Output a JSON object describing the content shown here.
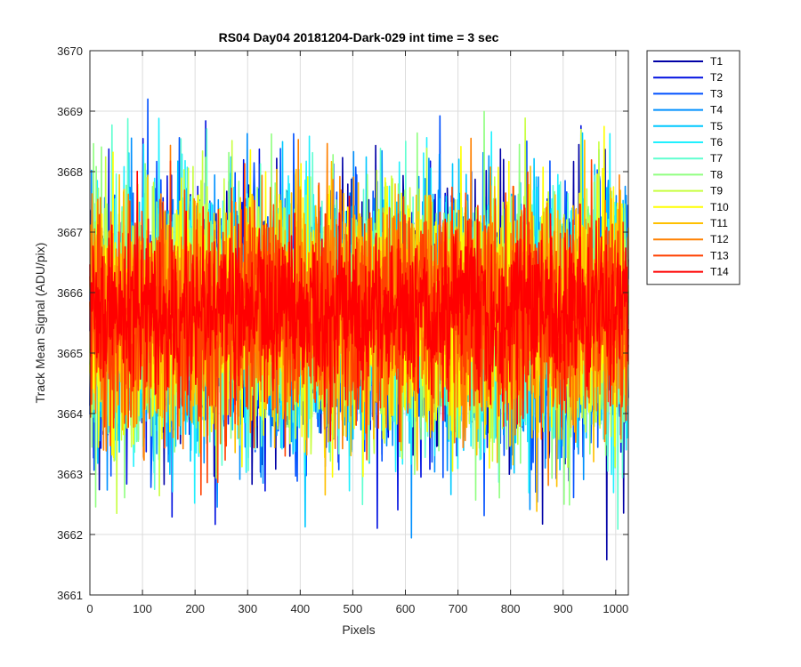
{
  "chart_data": {
    "type": "line",
    "title": "RS04 Day04 20181204-Dark-029 int time = 3 sec",
    "xlabel": "Pixels",
    "ylabel": "Track Mean Signal (ADU/pix)",
    "xlim": [
      0,
      1024
    ],
    "ylim": [
      3661,
      3670
    ],
    "xticks": [
      0,
      100,
      200,
      300,
      400,
      500,
      600,
      700,
      800,
      900,
      1000
    ],
    "yticks": [
      3661,
      3662,
      3663,
      3664,
      3665,
      3666,
      3667,
      3668,
      3669,
      3670
    ],
    "grid": true,
    "legend_position": "outside-top-right",
    "points_per_series": 1024,
    "series": [
      {
        "name": "T1",
        "color": "#0000a6",
        "mean": 3665.55,
        "spread": 1.05
      },
      {
        "name": "T2",
        "color": "#0010e0",
        "mean": 3665.55,
        "spread": 1.05
      },
      {
        "name": "T3",
        "color": "#0050ff",
        "mean": 3665.55,
        "spread": 1.05
      },
      {
        "name": "T4",
        "color": "#0090ff",
        "mean": 3665.55,
        "spread": 1.05
      },
      {
        "name": "T5",
        "color": "#00c8ff",
        "mean": 3665.6,
        "spread": 1.0
      },
      {
        "name": "T6",
        "color": "#20f0ff",
        "mean": 3665.6,
        "spread": 1.0
      },
      {
        "name": "T7",
        "color": "#60ffd0",
        "mean": 3665.6,
        "spread": 1.0
      },
      {
        "name": "T8",
        "color": "#90ff80",
        "mean": 3665.6,
        "spread": 1.0
      },
      {
        "name": "T9",
        "color": "#c8ff40",
        "mean": 3665.6,
        "spread": 1.0
      },
      {
        "name": "T10",
        "color": "#ffff00",
        "mean": 3665.65,
        "spread": 1.0
      },
      {
        "name": "T11",
        "color": "#ffc000",
        "mean": 3665.65,
        "spread": 1.0
      },
      {
        "name": "T12",
        "color": "#ff8000",
        "mean": 3665.6,
        "spread": 0.95
      },
      {
        "name": "T13",
        "color": "#ff4000",
        "mean": 3665.6,
        "spread": 0.9
      },
      {
        "name": "T14",
        "color": "#ff0000",
        "mean": 3665.7,
        "spread": 0.65
      }
    ]
  }
}
